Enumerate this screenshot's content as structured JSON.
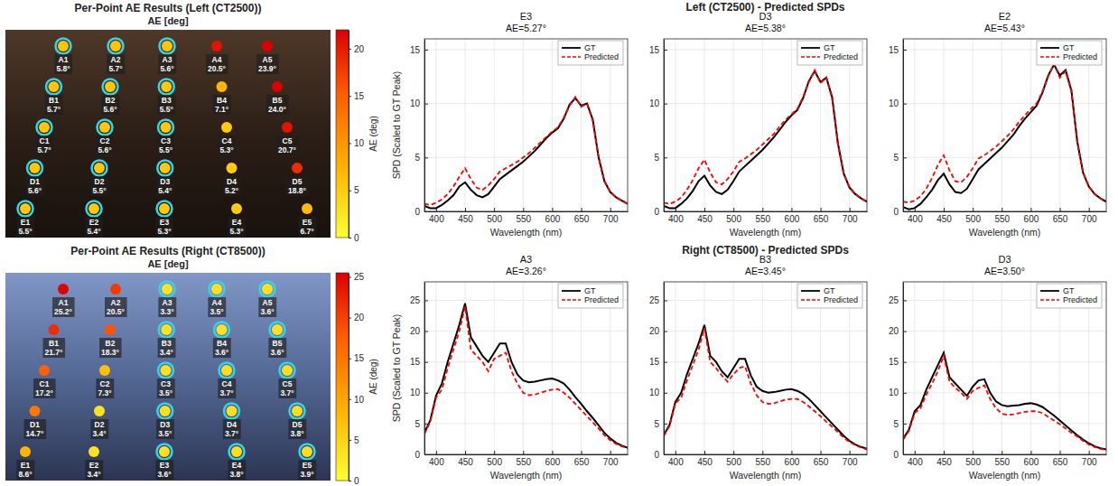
{
  "chart_data": [
    {
      "type": "image",
      "title": "Per-Point AE Results (Left (CT2500))",
      "subtitle": "AE [deg]",
      "series": [
        {
          "marker": "ring",
          "labels": [
            "A1",
            "A2",
            "A3",
            "B1",
            "B2",
            "B3",
            "C1",
            "C2",
            "C3",
            "D1",
            "D2",
            "D3",
            "E1",
            "E2",
            "E3"
          ],
          "values": [
            5.8,
            5.7,
            5.6,
            5.7,
            5.6,
            5.5,
            5.7,
            5.6,
            5.5,
            5.6,
            5.5,
            5.4,
            5.5,
            5.4,
            5.3
          ],
          "value_labels": [
            "5.8°",
            "5.7°",
            "5.6°",
            "5.7°",
            "5.6°",
            "5.5°",
            "5.7°",
            "5.6°",
            "5.5°",
            "5.6°",
            "5.5°",
            "5.4°",
            "5.5°",
            "5.4°",
            "5.3°"
          ]
        },
        {
          "marker": "dot",
          "labels": [
            "A4",
            "A5",
            "B4",
            "B5",
            "C4",
            "C5",
            "D4",
            "D5",
            "E4",
            "E5"
          ],
          "values": [
            20.5,
            23.9,
            7.1,
            24.0,
            5.3,
            20.7,
            5.2,
            18.8,
            5.3,
            6.7
          ],
          "value_labels": [
            "20.5°",
            "23.9°",
            "7.1°",
            "24.0°",
            "5.3°",
            "20.7°",
            "5.2°",
            "18.8°",
            "5.3°",
            "6.7°"
          ]
        }
      ],
      "colorbar": {
        "range": [
          0,
          22
        ],
        "ticks": [
          0,
          5,
          10,
          15,
          20
        ],
        "label": "AE (deg)"
      }
    },
    {
      "type": "image",
      "title": "Per-Point AE Results (Right (CT8500))",
      "subtitle": "AE [deg]",
      "series": [
        {
          "marker": "ring",
          "labels": [
            "A3",
            "A4",
            "A5",
            "B3",
            "B4",
            "B5",
            "C3",
            "C4",
            "C5",
            "D3",
            "D4",
            "D5",
            "E3",
            "E4",
            "E5"
          ],
          "values": [
            3.3,
            3.5,
            3.6,
            3.4,
            3.6,
            3.6,
            3.5,
            3.7,
            3.7,
            3.5,
            3.7,
            3.8,
            3.6,
            3.8,
            3.9
          ],
          "value_labels": [
            "3.3°",
            "3.5°",
            "3.6°",
            "3.4°",
            "3.6°",
            "3.6°",
            "3.5°",
            "3.7°",
            "3.7°",
            "3.5°",
            "3.7°",
            "3.8°",
            "3.6°",
            "3.8°",
            "3.9°"
          ]
        },
        {
          "marker": "dot",
          "labels": [
            "A1",
            "A2",
            "B1",
            "B2",
            "C1",
            "C2",
            "D1",
            "D2",
            "E1",
            "E2"
          ],
          "values": [
            25.2,
            20.5,
            21.7,
            18.3,
            17.2,
            7.3,
            14.7,
            3.4,
            8.6,
            3.4
          ],
          "value_labels": [
            "25.2°",
            "20.5°",
            "21.7°",
            "18.3°",
            "17.2°",
            "7.3°",
            "14.7°",
            "3.4°",
            "8.6°",
            "3.4°"
          ]
        }
      ],
      "colorbar": {
        "range": [
          0,
          25.5
        ],
        "ticks": [
          0,
          5,
          10,
          15,
          20,
          25
        ],
        "label": "AE (deg)"
      }
    },
    {
      "type": "line",
      "suptitle": "Left (CT2500) - Predicted SPDs",
      "title": "E3",
      "subtitle": "AE=5.27°",
      "xlabel": "Wavelength (nm)",
      "ylabel": "SPD (Scaled to GT Peak)",
      "x": [
        380,
        390,
        400,
        410,
        420,
        430,
        440,
        450,
        460,
        470,
        480,
        490,
        500,
        510,
        520,
        530,
        540,
        550,
        560,
        570,
        580,
        590,
        600,
        610,
        620,
        630,
        640,
        650,
        660,
        670,
        680,
        690,
        700,
        710,
        720,
        730
      ],
      "xlim": [
        380,
        730
      ],
      "xticks": [
        400,
        450,
        500,
        550,
        600,
        650,
        700
      ],
      "ylim": [
        0,
        16
      ],
      "yticks": [
        0,
        5,
        10,
        15
      ],
      "grid": true,
      "legend": "upper right",
      "series": [
        {
          "name": "GT",
          "color": "#000000",
          "line_style": "solid",
          "values": [
            0.5,
            0.3,
            0.3,
            0.6,
            1.0,
            1.5,
            2.3,
            2.7,
            2.0,
            1.5,
            1.3,
            1.6,
            2.3,
            3.0,
            3.4,
            3.8,
            4.2,
            4.6,
            5.1,
            5.6,
            6.2,
            6.8,
            7.3,
            7.7,
            8.6,
            9.9,
            10.5,
            9.8,
            10.0,
            8.5,
            5.0,
            2.8,
            1.8,
            1.3,
            1.0,
            0.7
          ]
        },
        {
          "name": "Predicted",
          "color": "#ff0000",
          "line_style": "dashed",
          "values": [
            0.7,
            0.6,
            0.8,
            1.1,
            1.6,
            2.3,
            3.2,
            4.0,
            3.0,
            2.2,
            2.0,
            2.4,
            3.0,
            3.7,
            4.0,
            4.3,
            4.6,
            5.0,
            5.4,
            5.9,
            6.4,
            6.9,
            7.4,
            7.8,
            8.7,
            9.8,
            10.6,
            9.7,
            10.0,
            8.4,
            5.0,
            2.8,
            1.8,
            1.3,
            1.0,
            0.7
          ]
        }
      ]
    },
    {
      "type": "line",
      "title": "D3",
      "subtitle": "AE=5.38°",
      "xlabel": "Wavelength (nm)",
      "x": [
        380,
        390,
        400,
        410,
        420,
        430,
        440,
        450,
        460,
        470,
        480,
        490,
        500,
        510,
        520,
        530,
        540,
        550,
        560,
        570,
        580,
        590,
        600,
        610,
        620,
        630,
        640,
        650,
        660,
        670,
        680,
        690,
        700,
        710,
        720,
        730
      ],
      "xlim": [
        380,
        730
      ],
      "xticks": [
        400,
        450,
        500,
        550,
        600,
        650,
        700
      ],
      "ylim": [
        0,
        16
      ],
      "yticks": [
        0,
        5,
        10,
        15
      ],
      "grid": true,
      "legend": "upper right",
      "series": [
        {
          "name": "GT",
          "color": "#000000",
          "line_style": "solid",
          "values": [
            0.5,
            0.3,
            0.3,
            0.7,
            1.2,
            1.9,
            2.8,
            3.3,
            2.4,
            1.8,
            1.6,
            2.0,
            2.8,
            3.7,
            4.2,
            4.7,
            5.2,
            5.7,
            6.3,
            6.9,
            7.6,
            8.3,
            8.9,
            9.4,
            10.5,
            12.1,
            13.0,
            12.0,
            12.4,
            10.6,
            6.3,
            3.5,
            2.2,
            1.6,
            1.2,
            0.9
          ]
        },
        {
          "name": "Predicted",
          "color": "#ff0000",
          "line_style": "dashed",
          "values": [
            0.8,
            0.7,
            0.9,
            1.3,
            2.0,
            2.9,
            4.0,
            4.8,
            3.6,
            2.7,
            2.5,
            3.0,
            3.7,
            4.6,
            4.9,
            5.3,
            5.7,
            6.2,
            6.7,
            7.2,
            7.9,
            8.5,
            9.0,
            9.5,
            10.6,
            12.0,
            13.1,
            11.9,
            12.4,
            10.5,
            6.2,
            3.5,
            2.2,
            1.6,
            1.2,
            0.9
          ]
        }
      ]
    },
    {
      "type": "line",
      "title": "E2",
      "subtitle": "AE=5.43°",
      "xlabel": "Wavelength (nm)",
      "x": [
        380,
        390,
        400,
        410,
        420,
        430,
        440,
        450,
        460,
        470,
        480,
        490,
        500,
        510,
        520,
        530,
        540,
        550,
        560,
        570,
        580,
        590,
        600,
        610,
        620,
        630,
        640,
        650,
        660,
        670,
        680,
        690,
        700,
        710,
        720,
        730
      ],
      "xlim": [
        380,
        730
      ],
      "xticks": [
        400,
        450,
        500,
        550,
        600,
        650,
        700
      ],
      "ylim": [
        0,
        16
      ],
      "yticks": [
        0,
        5,
        10,
        15
      ],
      "grid": true,
      "legend": "upper right",
      "series": [
        {
          "name": "GT",
          "color": "#000000",
          "line_style": "solid",
          "values": [
            0.4,
            0.2,
            0.3,
            0.7,
            1.3,
            2.0,
            2.9,
            3.5,
            2.5,
            1.8,
            1.7,
            2.1,
            3.0,
            3.9,
            4.4,
            4.9,
            5.4,
            5.9,
            6.5,
            7.1,
            7.9,
            8.6,
            9.2,
            9.8,
            11.0,
            12.6,
            13.6,
            12.6,
            13.1,
            11.2,
            6.5,
            3.6,
            2.3,
            1.6,
            1.2,
            0.9
          ]
        },
        {
          "name": "Predicted",
          "color": "#ff0000",
          "line_style": "dashed",
          "values": [
            0.9,
            0.8,
            1.0,
            1.4,
            2.1,
            3.1,
            4.3,
            5.2,
            3.8,
            2.8,
            2.7,
            3.2,
            4.0,
            4.9,
            5.2,
            5.6,
            6.0,
            6.5,
            7.0,
            7.6,
            8.3,
            8.9,
            9.5,
            10.0,
            11.1,
            12.5,
            13.7,
            12.4,
            13.0,
            11.1,
            6.4,
            3.6,
            2.3,
            1.6,
            1.2,
            0.9
          ]
        }
      ]
    },
    {
      "type": "line",
      "suptitle": "Right (CT8500) - Predicted SPDs",
      "title": "A3",
      "subtitle": "AE=3.26°",
      "xlabel": "Wavelength (nm)",
      "ylabel": "SPD (Scaled to GT Peak)",
      "x": [
        380,
        390,
        400,
        410,
        420,
        430,
        440,
        450,
        460,
        470,
        480,
        490,
        500,
        510,
        520,
        530,
        540,
        550,
        560,
        570,
        580,
        590,
        600,
        610,
        620,
        630,
        640,
        650,
        660,
        670,
        680,
        690,
        700,
        710,
        720,
        730
      ],
      "xlim": [
        380,
        730
      ],
      "xticks": [
        400,
        450,
        500,
        550,
        600,
        650,
        700
      ],
      "ylim": [
        0,
        28
      ],
      "yticks": [
        0,
        5,
        10,
        15,
        20,
        25
      ],
      "grid": true,
      "legend": "upper right",
      "series": [
        {
          "name": "GT",
          "color": "#000000",
          "line_style": "solid",
          "values": [
            3.5,
            5.5,
            9.5,
            11.5,
            15,
            18,
            21,
            24.5,
            19,
            17.5,
            16,
            15,
            16.5,
            18,
            18,
            15,
            13,
            12,
            11.7,
            11.8,
            12,
            12.2,
            12.3,
            12.0,
            11.5,
            10.5,
            9.3,
            8.2,
            7.0,
            5.9,
            4.7,
            3.5,
            2.6,
            1.9,
            1.4,
            1.1
          ]
        },
        {
          "name": "Predicted",
          "color": "#ff0000",
          "line_style": "dashed",
          "values": [
            3.3,
            5.3,
            9.2,
            10.5,
            14,
            17,
            20,
            24,
            17,
            16,
            15,
            13.5,
            15.5,
            16,
            16.5,
            13.5,
            11.5,
            10,
            9.6,
            9.7,
            10,
            10.3,
            10.5,
            10.6,
            10.0,
            9.2,
            8.2,
            7.2,
            6.2,
            5.2,
            4.2,
            3.1,
            2.3,
            1.7,
            1.3,
            1.0
          ]
        }
      ]
    },
    {
      "type": "line",
      "title": "B3",
      "subtitle": "AE=3.45°",
      "xlabel": "Wavelength (nm)",
      "x": [
        380,
        390,
        400,
        410,
        420,
        430,
        440,
        450,
        460,
        470,
        480,
        490,
        500,
        510,
        520,
        530,
        540,
        550,
        560,
        570,
        580,
        590,
        600,
        610,
        620,
        630,
        640,
        650,
        660,
        670,
        680,
        690,
        700,
        710,
        720,
        730
      ],
      "xlim": [
        380,
        730
      ],
      "xticks": [
        400,
        450,
        500,
        550,
        600,
        650,
        700
      ],
      "ylim": [
        0,
        28
      ],
      "yticks": [
        0,
        5,
        10,
        15,
        20,
        25
      ],
      "grid": true,
      "legend": "upper right",
      "series": [
        {
          "name": "GT",
          "color": "#000000",
          "line_style": "solid",
          "values": [
            3.1,
            4.8,
            8.5,
            10,
            13,
            15.5,
            18,
            21,
            16,
            15,
            13.5,
            12.5,
            14,
            15.5,
            15.5,
            12.8,
            11,
            10.3,
            10,
            10.1,
            10.3,
            10.5,
            10.6,
            10.3,
            9.8,
            9.0,
            8.0,
            7.0,
            6.0,
            5.0,
            4.0,
            3.0,
            2.2,
            1.6,
            1.2,
            0.9
          ]
        },
        {
          "name": "Predicted",
          "color": "#ff0000",
          "line_style": "dashed",
          "values": [
            3.0,
            4.6,
            8.3,
            9.2,
            12,
            14.5,
            17,
            20.5,
            15,
            14,
            12.8,
            11.8,
            13,
            14,
            14.3,
            11.5,
            9.6,
            8.5,
            8.2,
            8.3,
            8.6,
            8.9,
            9.0,
            9.0,
            8.5,
            7.8,
            7.0,
            6.2,
            5.3,
            4.5,
            3.6,
            2.7,
            2.0,
            1.5,
            1.1,
            0.8
          ]
        }
      ]
    },
    {
      "type": "line",
      "title": "D3",
      "subtitle": "AE=3.50°",
      "xlabel": "Wavelength (nm)",
      "x": [
        380,
        390,
        400,
        410,
        420,
        430,
        440,
        450,
        460,
        470,
        480,
        490,
        500,
        510,
        520,
        530,
        540,
        550,
        560,
        570,
        580,
        590,
        600,
        610,
        620,
        630,
        640,
        650,
        660,
        670,
        680,
        690,
        700,
        710,
        720,
        730
      ],
      "xlim": [
        380,
        730
      ],
      "xticks": [
        400,
        450,
        500,
        550,
        600,
        650,
        700
      ],
      "ylim": [
        0,
        28
      ],
      "yticks": [
        0,
        5,
        10,
        15,
        20,
        25
      ],
      "grid": true,
      "legend": "upper right",
      "series": [
        {
          "name": "GT",
          "color": "#000000",
          "line_style": "solid",
          "values": [
            2.5,
            4,
            7,
            8,
            10.5,
            12.5,
            14.5,
            16.5,
            12.5,
            11.5,
            10.5,
            9.5,
            11,
            12,
            12.2,
            10,
            8.6,
            8.0,
            7.8,
            7.9,
            8.0,
            8.2,
            8.3,
            8.1,
            7.7,
            7.0,
            6.3,
            5.5,
            4.7,
            3.9,
            3.1,
            2.4,
            1.8,
            1.3,
            1.0,
            0.8
          ]
        },
        {
          "name": "Predicted",
          "color": "#ff0000",
          "line_style": "dashed",
          "values": [
            2.4,
            3.8,
            6.7,
            7.5,
            9.7,
            11.5,
            13.5,
            16,
            11.8,
            10.8,
            10,
            9,
            10.3,
            10.8,
            11.2,
            9,
            7.5,
            6.6,
            6.4,
            6.5,
            6.7,
            6.9,
            7.0,
            7.0,
            6.7,
            6.1,
            5.5,
            4.9,
            4.2,
            3.5,
            2.9,
            2.2,
            1.6,
            1.2,
            0.9,
            0.7
          ]
        }
      ]
    }
  ]
}
